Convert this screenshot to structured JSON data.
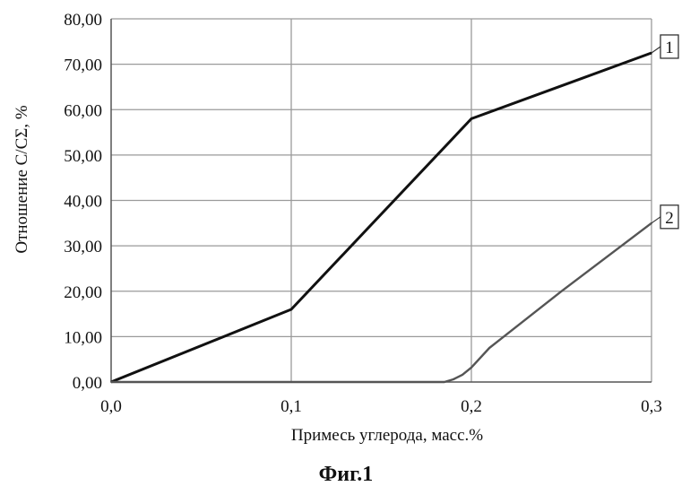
{
  "chart_data": {
    "type": "line",
    "title": "",
    "xlabel": "Примесь углерода, масс.%",
    "ylabel": "Отношение С/СΣ, %",
    "xlim": [
      0,
      0.3
    ],
    "ylim": [
      0,
      80
    ],
    "x_ticks": [
      {
        "value": 0,
        "label": "0,0"
      },
      {
        "value": 0.1,
        "label": "0,1"
      },
      {
        "value": 0.2,
        "label": "0,2"
      },
      {
        "value": 0.3,
        "label": "0,3"
      }
    ],
    "y_ticks": [
      {
        "value": 0,
        "label": "0,00"
      },
      {
        "value": 10,
        "label": "10,00"
      },
      {
        "value": 20,
        "label": "20,00"
      },
      {
        "value": 30,
        "label": "30,00"
      },
      {
        "value": 40,
        "label": "40,00"
      },
      {
        "value": 50,
        "label": "50,00"
      },
      {
        "value": 60,
        "label": "60,00"
      },
      {
        "value": 70,
        "label": "70,00"
      },
      {
        "value": 80,
        "label": "80,00"
      }
    ],
    "grid": true,
    "series": [
      {
        "label": "1",
        "color": "#111111",
        "points": [
          [
            0,
            0
          ],
          [
            0.1,
            16
          ],
          [
            0.2,
            58
          ],
          [
            0.3,
            72.5
          ]
        ]
      },
      {
        "label": "2",
        "color": "#555555",
        "points": [
          [
            0,
            0
          ],
          [
            0.185,
            0
          ],
          [
            0.19,
            0.6
          ],
          [
            0.195,
            1.6
          ],
          [
            0.2,
            3.2
          ],
          [
            0.21,
            7.5
          ],
          [
            0.25,
            20
          ],
          [
            0.3,
            35
          ]
        ]
      }
    ]
  },
  "caption": "Фиг.1"
}
